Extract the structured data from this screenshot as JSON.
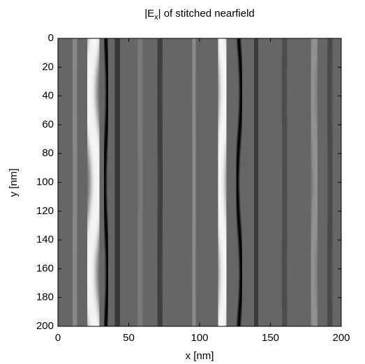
{
  "chart_data": {
    "type": "heatmap",
    "title": [
      "|E",
      "x",
      "| of stitched nearfield"
    ],
    "x_label": "x [nm]",
    "y_label": "y [nm]",
    "xlim": [
      0,
      200
    ],
    "xticks": [
      0,
      50,
      100,
      150,
      200
    ],
    "ylim": [
      200,
      0
    ],
    "yticks": [
      0,
      20,
      40,
      60,
      80,
      100,
      120,
      140,
      160,
      180,
      200
    ],
    "colormap": "gray"
  }
}
